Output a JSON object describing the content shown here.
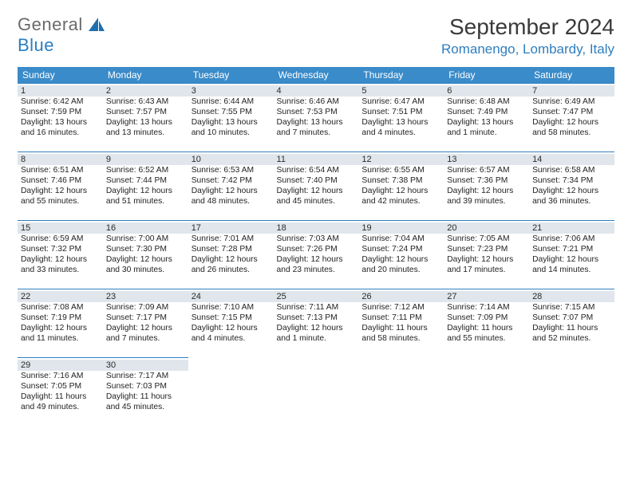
{
  "logo": {
    "general": "General",
    "blue": "Blue"
  },
  "title": "September 2024",
  "location": "Romanengo, Lombardy, Italy",
  "colors": {
    "header_bg": "#3a8bc9",
    "accent": "#2f7ebf",
    "daynum_bg": "#e0e6eb",
    "text": "#232323"
  },
  "day_headers": [
    "Sunday",
    "Monday",
    "Tuesday",
    "Wednesday",
    "Thursday",
    "Friday",
    "Saturday"
  ],
  "weeks": [
    [
      {
        "n": "1",
        "sr": "6:42 AM",
        "ss": "7:59 PM",
        "dl": "13 hours and 16 minutes."
      },
      {
        "n": "2",
        "sr": "6:43 AM",
        "ss": "7:57 PM",
        "dl": "13 hours and 13 minutes."
      },
      {
        "n": "3",
        "sr": "6:44 AM",
        "ss": "7:55 PM",
        "dl": "13 hours and 10 minutes."
      },
      {
        "n": "4",
        "sr": "6:46 AM",
        "ss": "7:53 PM",
        "dl": "13 hours and 7 minutes."
      },
      {
        "n": "5",
        "sr": "6:47 AM",
        "ss": "7:51 PM",
        "dl": "13 hours and 4 minutes."
      },
      {
        "n": "6",
        "sr": "6:48 AM",
        "ss": "7:49 PM",
        "dl": "13 hours and 1 minute."
      },
      {
        "n": "7",
        "sr": "6:49 AM",
        "ss": "7:47 PM",
        "dl": "12 hours and 58 minutes."
      }
    ],
    [
      {
        "n": "8",
        "sr": "6:51 AM",
        "ss": "7:46 PM",
        "dl": "12 hours and 55 minutes."
      },
      {
        "n": "9",
        "sr": "6:52 AM",
        "ss": "7:44 PM",
        "dl": "12 hours and 51 minutes."
      },
      {
        "n": "10",
        "sr": "6:53 AM",
        "ss": "7:42 PM",
        "dl": "12 hours and 48 minutes."
      },
      {
        "n": "11",
        "sr": "6:54 AM",
        "ss": "7:40 PM",
        "dl": "12 hours and 45 minutes."
      },
      {
        "n": "12",
        "sr": "6:55 AM",
        "ss": "7:38 PM",
        "dl": "12 hours and 42 minutes."
      },
      {
        "n": "13",
        "sr": "6:57 AM",
        "ss": "7:36 PM",
        "dl": "12 hours and 39 minutes."
      },
      {
        "n": "14",
        "sr": "6:58 AM",
        "ss": "7:34 PM",
        "dl": "12 hours and 36 minutes."
      }
    ],
    [
      {
        "n": "15",
        "sr": "6:59 AM",
        "ss": "7:32 PM",
        "dl": "12 hours and 33 minutes."
      },
      {
        "n": "16",
        "sr": "7:00 AM",
        "ss": "7:30 PM",
        "dl": "12 hours and 30 minutes."
      },
      {
        "n": "17",
        "sr": "7:01 AM",
        "ss": "7:28 PM",
        "dl": "12 hours and 26 minutes."
      },
      {
        "n": "18",
        "sr": "7:03 AM",
        "ss": "7:26 PM",
        "dl": "12 hours and 23 minutes."
      },
      {
        "n": "19",
        "sr": "7:04 AM",
        "ss": "7:24 PM",
        "dl": "12 hours and 20 minutes."
      },
      {
        "n": "20",
        "sr": "7:05 AM",
        "ss": "7:23 PM",
        "dl": "12 hours and 17 minutes."
      },
      {
        "n": "21",
        "sr": "7:06 AM",
        "ss": "7:21 PM",
        "dl": "12 hours and 14 minutes."
      }
    ],
    [
      {
        "n": "22",
        "sr": "7:08 AM",
        "ss": "7:19 PM",
        "dl": "12 hours and 11 minutes."
      },
      {
        "n": "23",
        "sr": "7:09 AM",
        "ss": "7:17 PM",
        "dl": "12 hours and 7 minutes."
      },
      {
        "n": "24",
        "sr": "7:10 AM",
        "ss": "7:15 PM",
        "dl": "12 hours and 4 minutes."
      },
      {
        "n": "25",
        "sr": "7:11 AM",
        "ss": "7:13 PM",
        "dl": "12 hours and 1 minute."
      },
      {
        "n": "26",
        "sr": "7:12 AM",
        "ss": "7:11 PM",
        "dl": "11 hours and 58 minutes."
      },
      {
        "n": "27",
        "sr": "7:14 AM",
        "ss": "7:09 PM",
        "dl": "11 hours and 55 minutes."
      },
      {
        "n": "28",
        "sr": "7:15 AM",
        "ss": "7:07 PM",
        "dl": "11 hours and 52 minutes."
      }
    ],
    [
      {
        "n": "29",
        "sr": "7:16 AM",
        "ss": "7:05 PM",
        "dl": "11 hours and 49 minutes."
      },
      {
        "n": "30",
        "sr": "7:17 AM",
        "ss": "7:03 PM",
        "dl": "11 hours and 45 minutes."
      },
      null,
      null,
      null,
      null,
      null
    ]
  ],
  "labels": {
    "sunrise": "Sunrise:",
    "sunset": "Sunset:",
    "daylight": "Daylight:"
  }
}
